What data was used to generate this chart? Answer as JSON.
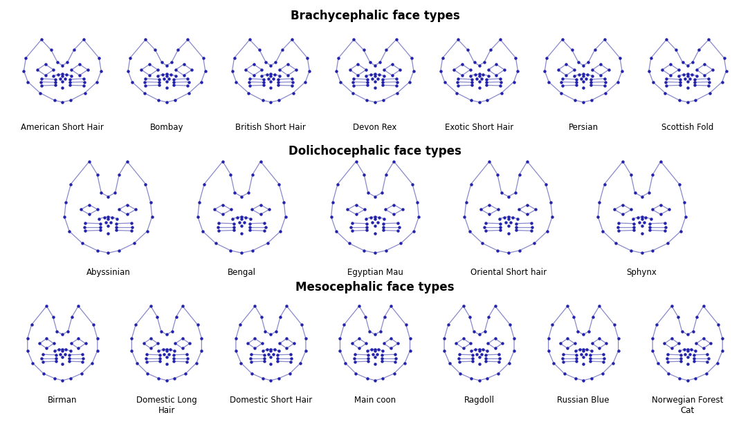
{
  "title_brachycephalic": "Brachycephalic face types",
  "title_dolichocephalic": "Dolichocephalic face types",
  "title_mesocephalic": "Mesocephalic face types",
  "line_color": "#8888CC",
  "dot_color": "#2222AA",
  "background_color": "#FFFFFF",
  "title_fontsize": 12,
  "label_fontsize": 8.5,
  "brachycephalic_breeds": [
    "American Short Hair",
    "Bombay",
    "British Short Hair",
    "Devon Rex",
    "Exotic Short Hair",
    "Persian",
    "Scottish Fold"
  ],
  "dolichocephalic_breeds": [
    "Abyssinian",
    "Bengal",
    "Egyptian Mau",
    "Oriental Short hair",
    "Sphynx"
  ],
  "mesocephalic_breeds": [
    "Birman",
    "Domestic Long\nHair",
    "Domestic Short Hair",
    "Main coon",
    "Ragdoll",
    "Russian Blue",
    "Norwegian Forest\nCat"
  ]
}
